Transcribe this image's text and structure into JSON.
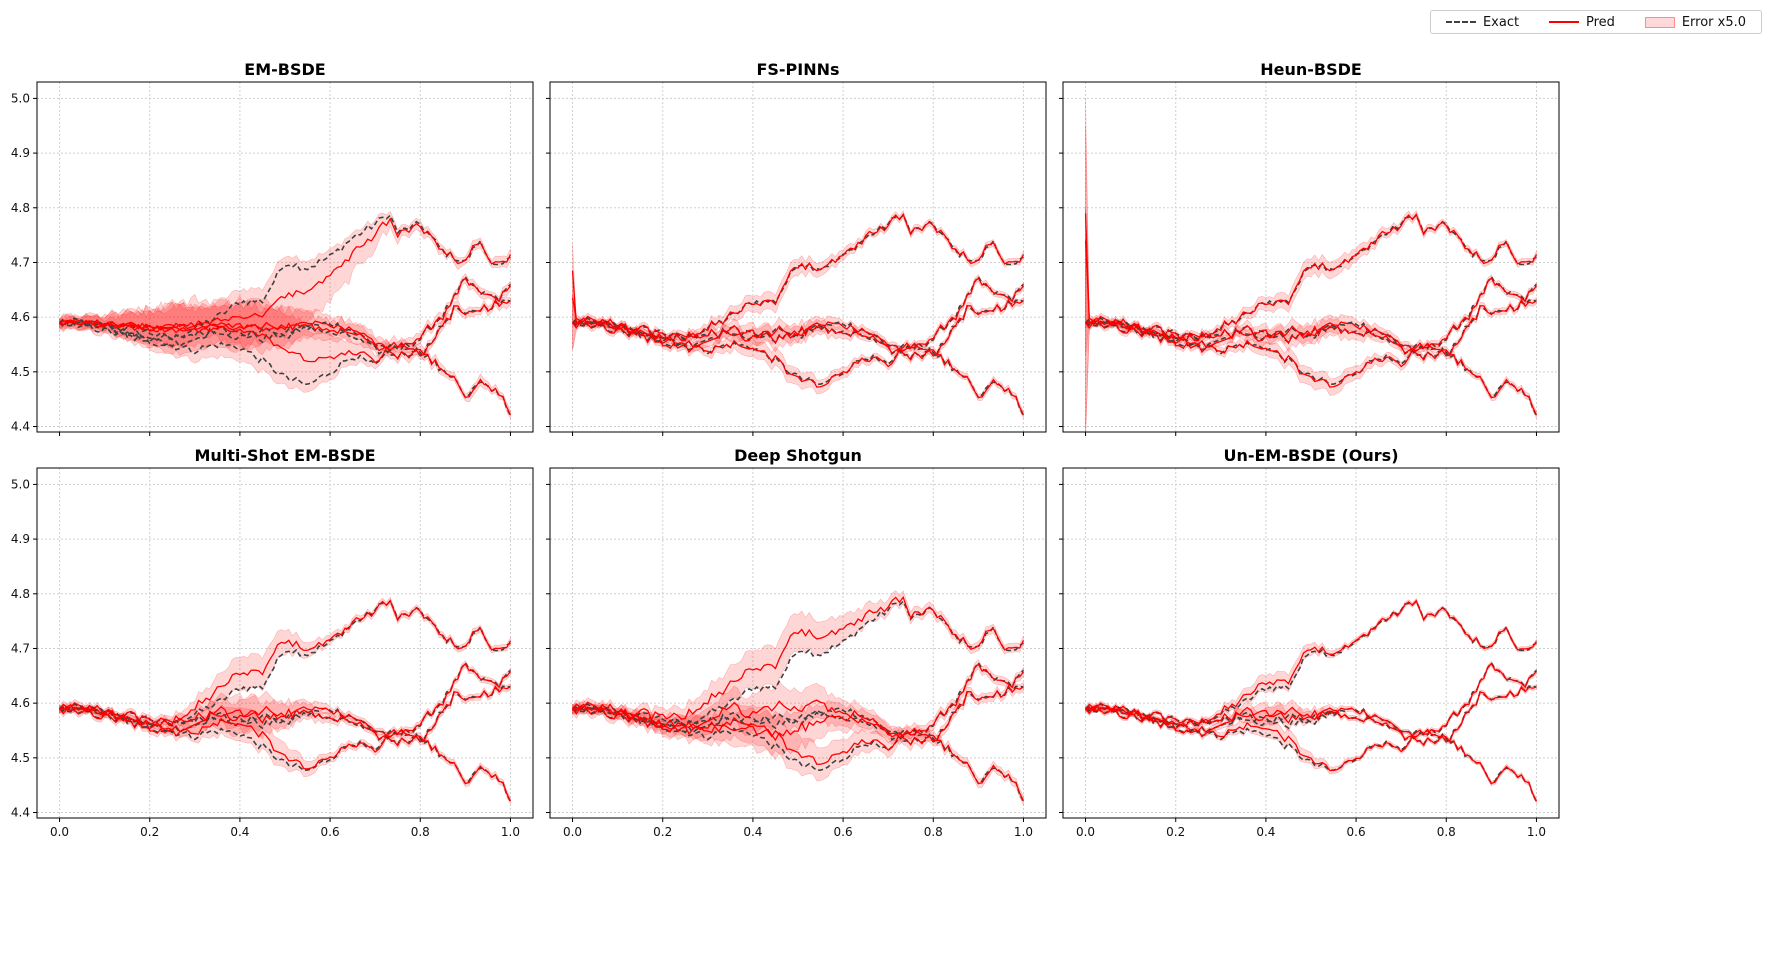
{
  "legend": {
    "exact_label": "Exact",
    "pred_label": "Pred",
    "error_label": "Error x5.0",
    "exact_color": "#404040",
    "pred_color": "#ff0000",
    "error_color": "#ffb3b3"
  },
  "chart_data": [
    {
      "type": "line",
      "title": "EM-BSDE",
      "style": "lag",
      "xlim": [
        0,
        1
      ],
      "ylim": [
        4.39,
        5.03
      ],
      "xticks": [
        "0.0",
        "0.2",
        "0.4",
        "0.6",
        "0.8",
        "1.0"
      ],
      "yticks": [
        "4.4",
        "4.5",
        "4.6",
        "4.7",
        "4.8",
        "4.9",
        "5.0"
      ],
      "show_xticklabels": false
    },
    {
      "type": "line",
      "title": "FS-PINNs",
      "style": "spike_small",
      "xlim": [
        0,
        1
      ],
      "ylim": [
        4.39,
        5.03
      ],
      "xticks": [
        "0.0",
        "0.2",
        "0.4",
        "0.6",
        "0.8",
        "1.0"
      ],
      "yticks": [
        "4.4",
        "4.5",
        "4.6",
        "4.7",
        "4.8",
        "4.9",
        "5.0"
      ],
      "show_xticklabels": false
    },
    {
      "type": "line",
      "title": "Heun-BSDE",
      "style": "spike_big",
      "xlim": [
        0,
        1
      ],
      "ylim": [
        4.39,
        5.03
      ],
      "xticks": [
        "0.0",
        "0.2",
        "0.4",
        "0.6",
        "0.8",
        "1.0"
      ],
      "yticks": [
        "4.4",
        "4.5",
        "4.6",
        "4.7",
        "4.8",
        "4.9",
        "5.0"
      ],
      "show_xticklabels": false
    },
    {
      "type": "line",
      "title": "Multi-Shot EM-BSDE",
      "style": "moderate",
      "xlim": [
        0,
        1
      ],
      "ylim": [
        4.39,
        5.03
      ],
      "xticks": [
        "0.0",
        "0.2",
        "0.4",
        "0.6",
        "0.8",
        "1.0"
      ],
      "yticks": [
        "4.4",
        "4.5",
        "4.6",
        "4.7",
        "4.8",
        "4.9",
        "5.0"
      ],
      "show_xticklabels": true
    },
    {
      "type": "line",
      "title": "Deep Shotgun",
      "style": "wide",
      "xlim": [
        0,
        1
      ],
      "ylim": [
        4.39,
        5.03
      ],
      "xticks": [
        "0.0",
        "0.2",
        "0.4",
        "0.6",
        "0.8",
        "1.0"
      ],
      "yticks": [
        "4.4",
        "4.5",
        "4.6",
        "4.7",
        "4.8",
        "4.9",
        "5.0"
      ],
      "show_xticklabels": true
    },
    {
      "type": "line",
      "title": "Un-EM-BSDE (Ours)",
      "style": "good",
      "xlim": [
        0,
        1
      ],
      "ylim": [
        4.39,
        5.03
      ],
      "xticks": [
        "0.0",
        "0.2",
        "0.4",
        "0.6",
        "0.8",
        "1.0"
      ],
      "yticks": [
        "4.4",
        "4.5",
        "4.6",
        "4.7",
        "4.8",
        "4.9",
        "5.0"
      ],
      "show_xticklabels": true
    }
  ],
  "paths_exact": [
    {
      "x": [
        0,
        0.05,
        0.1,
        0.15,
        0.2,
        0.25,
        0.3,
        0.35,
        0.4,
        0.45,
        0.5,
        0.55,
        0.6,
        0.65,
        0.7,
        0.73,
        0.75,
        0.8,
        0.85,
        0.9,
        0.93,
        0.95,
        0.98,
        1.0
      ],
      "y": [
        4.59,
        4.592,
        4.585,
        4.578,
        4.572,
        4.56,
        4.58,
        4.6,
        4.628,
        4.63,
        4.7,
        4.69,
        4.71,
        4.745,
        4.77,
        4.79,
        4.755,
        4.77,
        4.72,
        4.7,
        4.74,
        4.71,
        4.69,
        4.71
      ]
    },
    {
      "x": [
        0,
        0.05,
        0.1,
        0.15,
        0.2,
        0.25,
        0.3,
        0.35,
        0.4,
        0.45,
        0.5,
        0.55,
        0.6,
        0.65,
        0.7,
        0.75,
        0.8,
        0.85,
        0.88,
        0.9,
        0.93,
        0.95,
        0.98,
        1.0
      ],
      "y": [
        4.59,
        4.588,
        4.582,
        4.57,
        4.565,
        4.56,
        4.57,
        4.575,
        4.57,
        4.56,
        4.57,
        4.58,
        4.59,
        4.575,
        4.55,
        4.54,
        4.56,
        4.605,
        4.64,
        4.67,
        4.645,
        4.64,
        4.635,
        4.66
      ]
    },
    {
      "x": [
        0,
        0.05,
        0.1,
        0.15,
        0.2,
        0.25,
        0.3,
        0.35,
        0.4,
        0.45,
        0.5,
        0.55,
        0.6,
        0.65,
        0.7,
        0.75,
        0.8,
        0.85,
        0.88,
        0.9,
        0.93,
        0.95,
        0.98,
        1.0
      ],
      "y": [
        4.59,
        4.586,
        4.575,
        4.565,
        4.556,
        4.548,
        4.54,
        4.55,
        4.545,
        4.52,
        4.49,
        4.475,
        4.5,
        4.53,
        4.51,
        4.55,
        4.53,
        4.585,
        4.62,
        4.6,
        4.615,
        4.62,
        4.625,
        4.63
      ]
    },
    {
      "x": [
        0,
        0.05,
        0.1,
        0.15,
        0.2,
        0.25,
        0.3,
        0.35,
        0.4,
        0.45,
        0.5,
        0.55,
        0.6,
        0.65,
        0.7,
        0.75,
        0.8,
        0.85,
        0.88,
        0.9,
        0.93,
        0.95,
        0.98,
        1.0
      ],
      "y": [
        4.59,
        4.59,
        4.585,
        4.57,
        4.56,
        4.55,
        4.56,
        4.58,
        4.56,
        4.58,
        4.565,
        4.585,
        4.57,
        4.565,
        4.54,
        4.53,
        4.54,
        4.5,
        4.49,
        4.45,
        4.48,
        4.47,
        4.46,
        4.42
      ]
    }
  ]
}
